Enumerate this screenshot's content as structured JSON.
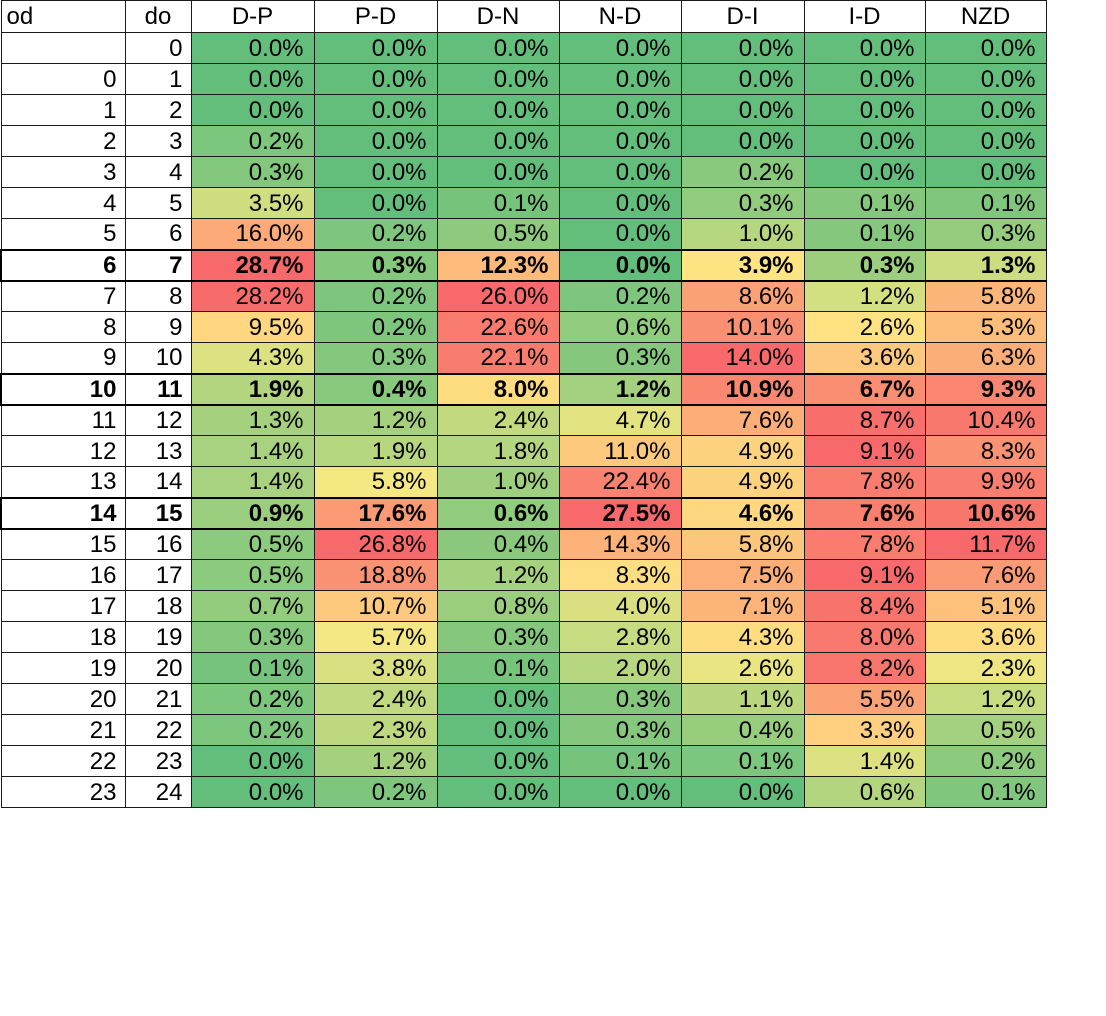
{
  "chart_data": {
    "type": "heatmap",
    "columns": [
      "od",
      "do",
      "D-P",
      "P-D",
      "D-N",
      "N-D",
      "D-I",
      "I-D",
      "NZD"
    ],
    "color_scale": {
      "low": "#63be7b",
      "mid": "#ffeb84",
      "high": "#f8696b"
    },
    "bold_rows": [
      7,
      11,
      15
    ],
    "rows": [
      {
        "od": "",
        "do": "0",
        "values": [
          "0.0%",
          "0.0%",
          "0.0%",
          "0.0%",
          "0.0%",
          "0.0%",
          "0.0%"
        ]
      },
      {
        "od": "0",
        "do": "1",
        "values": [
          "0.0%",
          "0.0%",
          "0.0%",
          "0.0%",
          "0.0%",
          "0.0%",
          "0.0%"
        ]
      },
      {
        "od": "1",
        "do": "2",
        "values": [
          "0.0%",
          "0.0%",
          "0.0%",
          "0.0%",
          "0.0%",
          "0.0%",
          "0.0%"
        ]
      },
      {
        "od": "2",
        "do": "3",
        "values": [
          "0.2%",
          "0.0%",
          "0.0%",
          "0.0%",
          "0.0%",
          "0.0%",
          "0.0%"
        ]
      },
      {
        "od": "3",
        "do": "4",
        "values": [
          "0.3%",
          "0.0%",
          "0.0%",
          "0.0%",
          "0.2%",
          "0.0%",
          "0.0%"
        ]
      },
      {
        "od": "4",
        "do": "5",
        "values": [
          "3.5%",
          "0.0%",
          "0.1%",
          "0.0%",
          "0.3%",
          "0.1%",
          "0.1%"
        ]
      },
      {
        "od": "5",
        "do": "6",
        "values": [
          "16.0%",
          "0.2%",
          "0.5%",
          "0.0%",
          "1.0%",
          "0.1%",
          "0.3%"
        ]
      },
      {
        "od": "6",
        "do": "7",
        "values": [
          "28.7%",
          "0.3%",
          "12.3%",
          "0.0%",
          "3.9%",
          "0.3%",
          "1.3%"
        ]
      },
      {
        "od": "7",
        "do": "8",
        "values": [
          "28.2%",
          "0.2%",
          "26.0%",
          "0.2%",
          "8.6%",
          "1.2%",
          "5.8%"
        ]
      },
      {
        "od": "8",
        "do": "9",
        "values": [
          "9.5%",
          "0.2%",
          "22.6%",
          "0.6%",
          "10.1%",
          "2.6%",
          "5.3%"
        ]
      },
      {
        "od": "9",
        "do": "10",
        "values": [
          "4.3%",
          "0.3%",
          "22.1%",
          "0.3%",
          "14.0%",
          "3.6%",
          "6.3%"
        ]
      },
      {
        "od": "10",
        "do": "11",
        "values": [
          "1.9%",
          "0.4%",
          "8.0%",
          "1.2%",
          "10.9%",
          "6.7%",
          "9.3%"
        ]
      },
      {
        "od": "11",
        "do": "12",
        "values": [
          "1.3%",
          "1.2%",
          "2.4%",
          "4.7%",
          "7.6%",
          "8.7%",
          "10.4%"
        ]
      },
      {
        "od": "12",
        "do": "13",
        "values": [
          "1.4%",
          "1.9%",
          "1.8%",
          "11.0%",
          "4.9%",
          "9.1%",
          "8.3%"
        ]
      },
      {
        "od": "13",
        "do": "14",
        "values": [
          "1.4%",
          "5.8%",
          "1.0%",
          "22.4%",
          "4.9%",
          "7.8%",
          "9.9%"
        ]
      },
      {
        "od": "14",
        "do": "15",
        "values": [
          "0.9%",
          "17.6%",
          "0.6%",
          "27.5%",
          "4.6%",
          "7.6%",
          "10.6%"
        ]
      },
      {
        "od": "15",
        "do": "16",
        "values": [
          "0.5%",
          "26.8%",
          "0.4%",
          "14.3%",
          "5.8%",
          "7.8%",
          "11.7%"
        ]
      },
      {
        "od": "16",
        "do": "17",
        "values": [
          "0.5%",
          "18.8%",
          "1.2%",
          "8.3%",
          "7.5%",
          "9.1%",
          "7.6%"
        ]
      },
      {
        "od": "17",
        "do": "18",
        "values": [
          "0.7%",
          "10.7%",
          "0.8%",
          "4.0%",
          "7.1%",
          "8.4%",
          "5.1%"
        ]
      },
      {
        "od": "18",
        "do": "19",
        "values": [
          "0.3%",
          "5.7%",
          "0.3%",
          "2.8%",
          "4.3%",
          "8.0%",
          "3.6%"
        ]
      },
      {
        "od": "19",
        "do": "20",
        "values": [
          "0.1%",
          "3.8%",
          "0.1%",
          "2.0%",
          "2.6%",
          "8.2%",
          "2.3%"
        ]
      },
      {
        "od": "20",
        "do": "21",
        "values": [
          "0.2%",
          "2.4%",
          "0.0%",
          "0.3%",
          "1.1%",
          "5.5%",
          "1.2%"
        ]
      },
      {
        "od": "21",
        "do": "22",
        "values": [
          "0.2%",
          "2.3%",
          "0.0%",
          "0.3%",
          "0.4%",
          "3.3%",
          "0.5%"
        ]
      },
      {
        "od": "22",
        "do": "23",
        "values": [
          "0.0%",
          "1.2%",
          "0.0%",
          "0.1%",
          "0.1%",
          "1.4%",
          "0.2%"
        ]
      },
      {
        "od": "23",
        "do": "24",
        "values": [
          "0.0%",
          "0.2%",
          "0.0%",
          "0.0%",
          "0.0%",
          "0.6%",
          "0.1%"
        ]
      }
    ]
  }
}
